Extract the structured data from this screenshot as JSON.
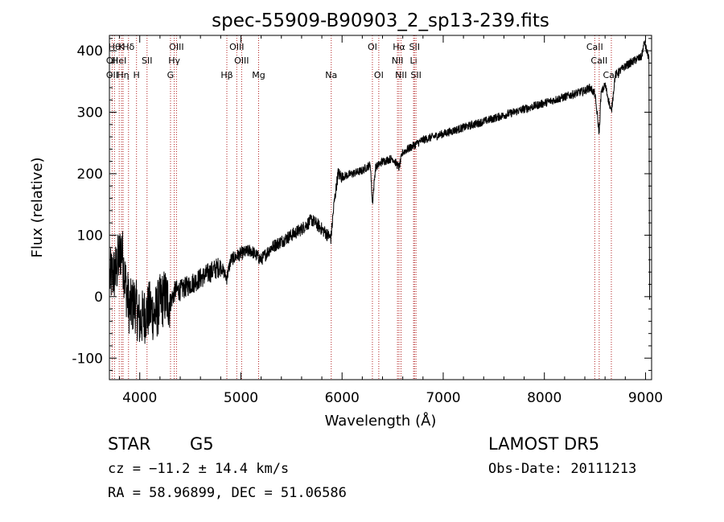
{
  "chart_data": {
    "type": "line",
    "title": "spec-55909-B90903_2_sp13-239.fits",
    "xlabel": "Wavelength (Å)",
    "ylabel": "Flux (relative)",
    "xlim": [
      3700,
      9060
    ],
    "ylim": [
      -135,
      425
    ],
    "xticks": [
      4000,
      5000,
      6000,
      7000,
      8000,
      9000
    ],
    "yticks": [
      -100,
      0,
      100,
      200,
      300,
      400
    ],
    "grid": false,
    "legend": "none",
    "line_color": "#000000",
    "marker_color": "#b22222",
    "spectrum_envelope": [
      [
        3700,
        30
      ],
      [
        3760,
        40
      ],
      [
        3820,
        80
      ],
      [
        3860,
        20
      ],
      [
        3900,
        -20
      ],
      [
        3950,
        -10
      ],
      [
        4000,
        -40
      ],
      [
        4050,
        -30
      ],
      [
        4100,
        -20
      ],
      [
        4150,
        -30
      ],
      [
        4200,
        -10
      ],
      [
        4250,
        0
      ],
      [
        4300,
        -10
      ],
      [
        4350,
        10
      ],
      [
        4400,
        10
      ],
      [
        4500,
        20
      ],
      [
        4600,
        30
      ],
      [
        4700,
        40
      ],
      [
        4800,
        50
      ],
      [
        4860,
        30
      ],
      [
        4900,
        60
      ],
      [
        5000,
        70
      ],
      [
        5100,
        75
      ],
      [
        5200,
        60
      ],
      [
        5300,
        80
      ],
      [
        5400,
        90
      ],
      [
        5500,
        100
      ],
      [
        5600,
        110
      ],
      [
        5700,
        125
      ],
      [
        5800,
        110
      ],
      [
        5890,
        95
      ],
      [
        5920,
        150
      ],
      [
        5960,
        200
      ],
      [
        6000,
        195
      ],
      [
        6100,
        200
      ],
      [
        6200,
        205
      ],
      [
        6280,
        215
      ],
      [
        6300,
        150
      ],
      [
        6330,
        210
      ],
      [
        6400,
        220
      ],
      [
        6500,
        225
      ],
      [
        6563,
        210
      ],
      [
        6600,
        235
      ],
      [
        6700,
        245
      ],
      [
        6800,
        255
      ],
      [
        6900,
        260
      ],
      [
        7000,
        265
      ],
      [
        7100,
        270
      ],
      [
        7200,
        275
      ],
      [
        7300,
        280
      ],
      [
        7400,
        285
      ],
      [
        7500,
        290
      ],
      [
        7600,
        295
      ],
      [
        7700,
        300
      ],
      [
        7800,
        305
      ],
      [
        7900,
        310
      ],
      [
        8000,
        315
      ],
      [
        8100,
        320
      ],
      [
        8200,
        325
      ],
      [
        8300,
        330
      ],
      [
        8400,
        335
      ],
      [
        8450,
        340
      ],
      [
        8498,
        330
      ],
      [
        8520,
        300
      ],
      [
        8542,
        265
      ],
      [
        8560,
        330
      ],
      [
        8600,
        345
      ],
      [
        8662,
        300
      ],
      [
        8700,
        360
      ],
      [
        8800,
        375
      ],
      [
        8900,
        385
      ],
      [
        8960,
        390
      ],
      [
        8990,
        415
      ],
      [
        9010,
        400
      ],
      [
        9030,
        390
      ]
    ],
    "line_markers": [
      {
        "x": 3750,
        "label": "Hθ",
        "row": 0
      },
      {
        "x": 3820,
        "label": "K",
        "row": 0
      },
      {
        "x": 3889,
        "label": "Hδ",
        "row": 0
      },
      {
        "x": 4363,
        "label": "OIII",
        "row": 0
      },
      {
        "x": 4959,
        "label": "OIII",
        "row": 0
      },
      {
        "x": 6300,
        "label": "OI",
        "row": 0
      },
      {
        "x": 6563,
        "label": "Hα",
        "row": 0
      },
      {
        "x": 6716,
        "label": "SII",
        "row": 0
      },
      {
        "x": 8498,
        "label": "CaII",
        "row": 0
      },
      {
        "x": 3727,
        "label": "OII",
        "row": 1
      },
      {
        "x": 3797,
        "label": "HeI",
        "row": 1
      },
      {
        "x": 4072,
        "label": "SII",
        "row": 1
      },
      {
        "x": 4341,
        "label": "Hγ",
        "row": 1
      },
      {
        "x": 5007,
        "label": "OIII",
        "row": 1
      },
      {
        "x": 6548,
        "label": "NII",
        "row": 1
      },
      {
        "x": 6707,
        "label": "Li",
        "row": 1
      },
      {
        "x": 8542,
        "label": "CaII",
        "row": 1
      },
      {
        "x": 3727,
        "label": "OII",
        "row": 2
      },
      {
        "x": 3835,
        "label": "Hη",
        "row": 2
      },
      {
        "x": 3968,
        "label": "H",
        "row": 2
      },
      {
        "x": 4304,
        "label": "G",
        "row": 2
      },
      {
        "x": 4861,
        "label": "Hβ",
        "row": 2
      },
      {
        "x": 5175,
        "label": "Mg",
        "row": 2
      },
      {
        "x": 5893,
        "label": "Na",
        "row": 2
      },
      {
        "x": 6363,
        "label": "OI",
        "row": 2
      },
      {
        "x": 6583,
        "label": "NII",
        "row": 2
      },
      {
        "x": 6731,
        "label": "SII",
        "row": 2
      },
      {
        "x": 8662,
        "label": "CaII",
        "row": 2
      }
    ]
  },
  "info": {
    "class_label": "STAR",
    "subclass": "G5",
    "survey": "LAMOST DR5",
    "cz": "cz = −11.2 ± 14.4 km/s",
    "obs_date": "Obs-Date: 20111213",
    "coords": "RA =  58.96899, DEC =  51.06586"
  }
}
